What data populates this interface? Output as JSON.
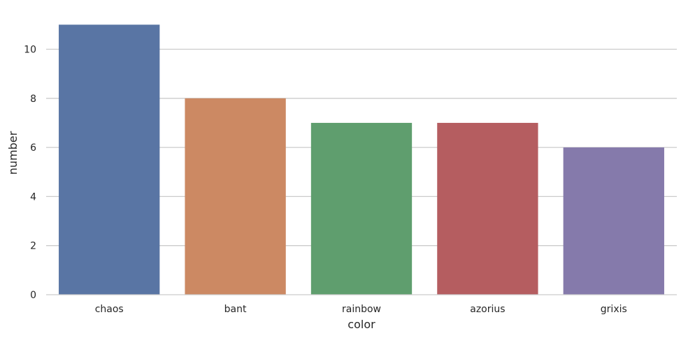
{
  "chart_data": {
    "type": "bar",
    "categories": [
      "chaos",
      "bant",
      "rainbow",
      "azorius",
      "grixis"
    ],
    "values": [
      11,
      8,
      7,
      7,
      6
    ],
    "colors": [
      "#5975a4",
      "#cc8963",
      "#5f9e6e",
      "#b55d60",
      "#857aab"
    ],
    "title": "",
    "xlabel": "color",
    "ylabel": "number",
    "ylim": [
      0,
      11.55
    ],
    "yticks": [
      0,
      2,
      4,
      6,
      8,
      10
    ],
    "grid": "horizontal",
    "grid_color": "#cccccc",
    "legend": "none"
  }
}
